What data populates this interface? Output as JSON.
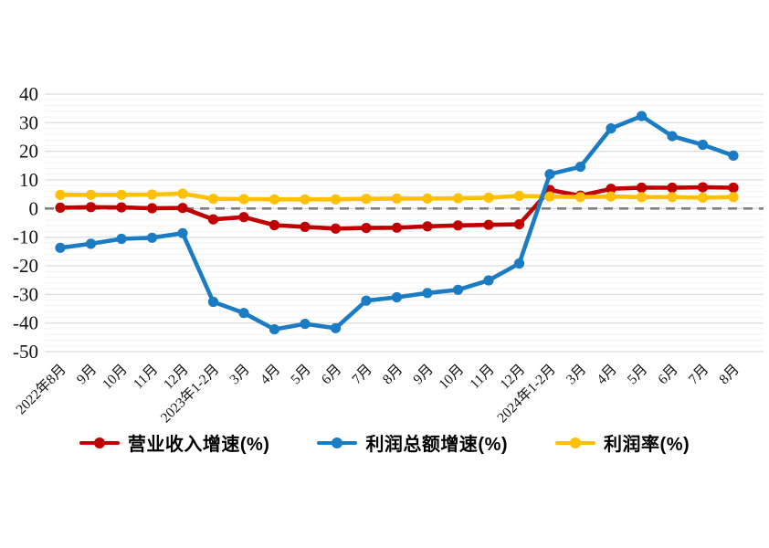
{
  "chart_data": {
    "type": "line",
    "title": "",
    "xlabel": "",
    "ylabel": "",
    "categories": [
      "2022年8月",
      "9月",
      "10月",
      "11月",
      "12月",
      "2023年1-2月",
      "3月",
      "4月",
      "5月",
      "6月",
      "7月",
      "8月",
      "9月",
      "10月",
      "11月",
      "12月",
      "2024年1-2月",
      "3月",
      "4月",
      "5月",
      "6月",
      "7月",
      "8月"
    ],
    "series": [
      {
        "name": "营业收入增速(%)",
        "key": "revenue-growth",
        "color": "#c00000",
        "values": [
          0.3,
          0.5,
          0.4,
          0.1,
          0.2,
          -3.8,
          -3.0,
          -5.8,
          -6.4,
          -7.0,
          -6.8,
          -6.7,
          -6.2,
          -5.9,
          -5.7,
          -5.5,
          6.5,
          4.5,
          6.9,
          7.3,
          7.3,
          7.4,
          7.3
        ]
      },
      {
        "name": "利润总额增速(%)",
        "key": "profit-growth",
        "color": "#1b7bc3",
        "values": [
          -13.7,
          -12.3,
          -10.6,
          -10.2,
          -8.6,
          -32.6,
          -36.5,
          -42.2,
          -40.3,
          -41.8,
          -32.2,
          -31.0,
          -29.5,
          -28.4,
          -25.1,
          -19.2,
          12.0,
          14.6,
          28.0,
          32.3,
          25.3,
          22.3,
          18.5
        ]
      },
      {
        "name": "利润率(%)",
        "key": "profit-margin",
        "color": "#ffc000",
        "values": [
          4.8,
          4.8,
          4.8,
          4.9,
          5.2,
          3.4,
          3.3,
          3.2,
          3.2,
          3.2,
          3.4,
          3.5,
          3.5,
          3.6,
          3.8,
          4.4,
          4.2,
          4.0,
          4.2,
          4.0,
          4.0,
          3.8,
          4.0
        ]
      }
    ],
    "ylim": [
      -50,
      40
    ],
    "y_ticks": [
      40,
      30,
      20,
      10,
      0,
      -10,
      -20,
      -30,
      -40,
      -50
    ],
    "grid": "horizontal major + faint minor every 2 units",
    "zero_line": "dashed gray at 0",
    "legend_position": "bottom-center"
  },
  "legend": {
    "items": [
      {
        "label": "营业收入增速(%)"
      },
      {
        "label": "利润总额增速(%)"
      },
      {
        "label": "利润率(%)"
      }
    ]
  },
  "colors": {
    "background": "#ffffff",
    "grid_major": "#dedede",
    "grid_minor": "#f2f2f2",
    "zero_line": "#808080",
    "axis_text": "#111111",
    "series_revenue": "#c00000",
    "series_profit": "#1b7bc3",
    "series_margin": "#ffc000"
  }
}
